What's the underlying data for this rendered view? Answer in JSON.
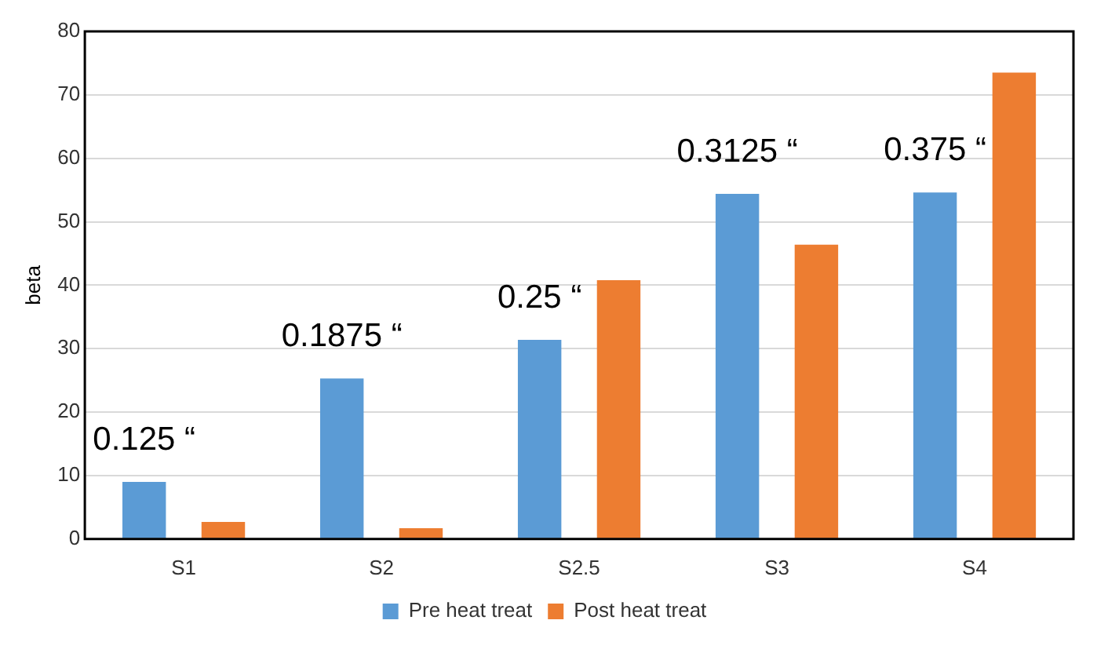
{
  "chart_data": {
    "type": "bar",
    "ylabel": "beta",
    "categories": [
      "S1",
      "S2",
      "S2.5",
      "S3",
      "S4"
    ],
    "series": [
      {
        "name": "Pre heat treat",
        "color": "#5b9bd5",
        "values": [
          9,
          25.3,
          31.4,
          54.4,
          54.6
        ]
      },
      {
        "name": "Post heat treat",
        "color": "#ed7d31",
        "values": [
          2.7,
          1.7,
          40.8,
          46.4,
          73.5
        ]
      }
    ],
    "ylim": [
      0,
      80
    ],
    "yticks": [
      0,
      10,
      20,
      30,
      40,
      50,
      60,
      70,
      80
    ],
    "grid": "y",
    "legend": "bottom",
    "annotations": [
      "0.125 “",
      "0.1875 “",
      "0.25 “",
      "0.3125 “",
      "0.375 “"
    ]
  }
}
